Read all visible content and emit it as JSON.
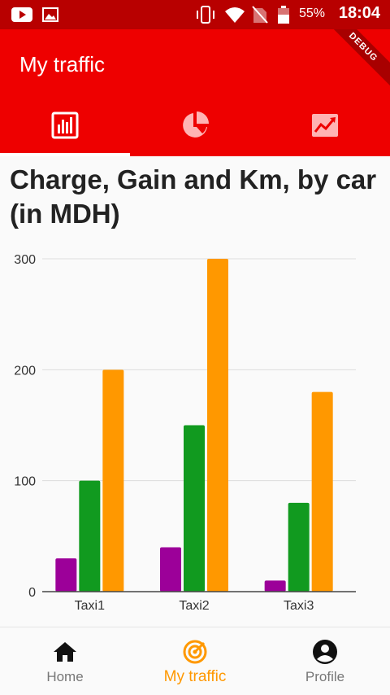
{
  "status_bar": {
    "battery_percent": "55%",
    "time": "18:04"
  },
  "app_bar": {
    "title": "My traffic",
    "debug_banner": "DEBUG",
    "background": "#ee0000"
  },
  "tabs": [
    {
      "icon": "bar-chart-icon",
      "selected": true
    },
    {
      "icon": "pie-chart-icon",
      "selected": false
    },
    {
      "icon": "line-chart-icon",
      "selected": false
    }
  ],
  "chart_data": {
    "type": "bar",
    "title": "Charge, Gain and Km, by car (in MDH)",
    "categories": [
      "Taxi1",
      "Taxi2",
      "Taxi3"
    ],
    "series": [
      {
        "color": "#9c0099",
        "values": [
          30,
          40,
          10
        ]
      },
      {
        "color": "#119a1f",
        "values": [
          100,
          150,
          80
        ]
      },
      {
        "color": "#ff9800",
        "values": [
          200,
          300,
          180
        ]
      }
    ],
    "ylim": [
      0,
      300
    ],
    "yticks": [
      0,
      100,
      200,
      300
    ],
    "xlabel": "",
    "ylabel": "",
    "grid": true
  },
  "bottom_nav": {
    "items": [
      {
        "label": "Home",
        "icon": "home-icon",
        "active": false
      },
      {
        "label": "My traffic",
        "icon": "traffic-icon",
        "active": true
      },
      {
        "label": "Profile",
        "icon": "profile-icon",
        "active": false
      }
    ],
    "active_color": "#ff9800"
  }
}
